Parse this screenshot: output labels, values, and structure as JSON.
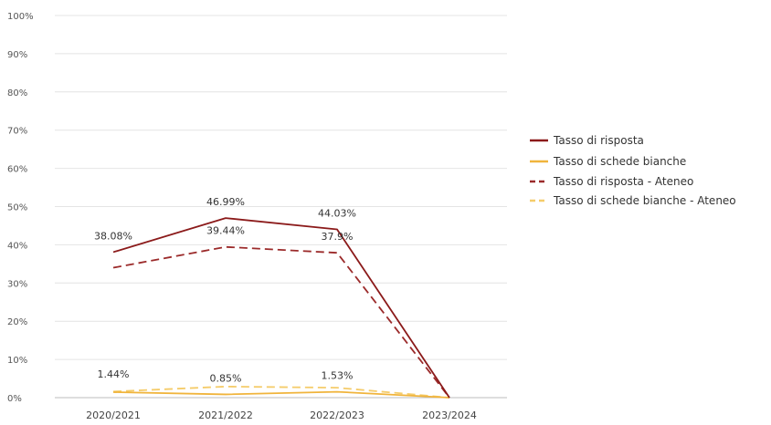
{
  "chart_data": {
    "type": "line",
    "title": "",
    "xlabel": "",
    "ylabel": "",
    "categories": [
      "2020/2021",
      "2021/2022",
      "2022/2023",
      "2023/2024"
    ],
    "y_ticks": [
      "0%",
      "10%",
      "20%",
      "30%",
      "40%",
      "50%",
      "60%",
      "70%",
      "80%",
      "90%",
      "100%"
    ],
    "ylim": [
      0,
      100
    ],
    "grid": true,
    "legend_position": "right",
    "series": [
      {
        "name": "Tasso di risposta",
        "values": [
          38.08,
          46.99,
          44.03,
          0
        ],
        "labels": [
          "38.08%",
          "46.99%",
          "44.03%",
          ""
        ],
        "color": "#8b1a1a",
        "dash": false
      },
      {
        "name": "Tasso di schede bianche",
        "values": [
          1.44,
          0.85,
          1.53,
          0
        ],
        "labels": [
          "1.44%",
          "0.85%",
          "1.53%",
          ""
        ],
        "color": "#f0b43c",
        "dash": false
      },
      {
        "name": "Tasso di risposta - Ateneo",
        "values": [
          34.0,
          39.44,
          37.9,
          0
        ],
        "labels": [
          "",
          "39.44%",
          "37.9%",
          ""
        ],
        "color": "#9b2a2a",
        "dash": true
      },
      {
        "name": "Tasso di schede bianche - Ateneo",
        "values": [
          1.6,
          2.9,
          2.6,
          0
        ],
        "labels": [
          "",
          "",
          "",
          ""
        ],
        "color": "#f5cc6a",
        "dash": true
      }
    ]
  }
}
